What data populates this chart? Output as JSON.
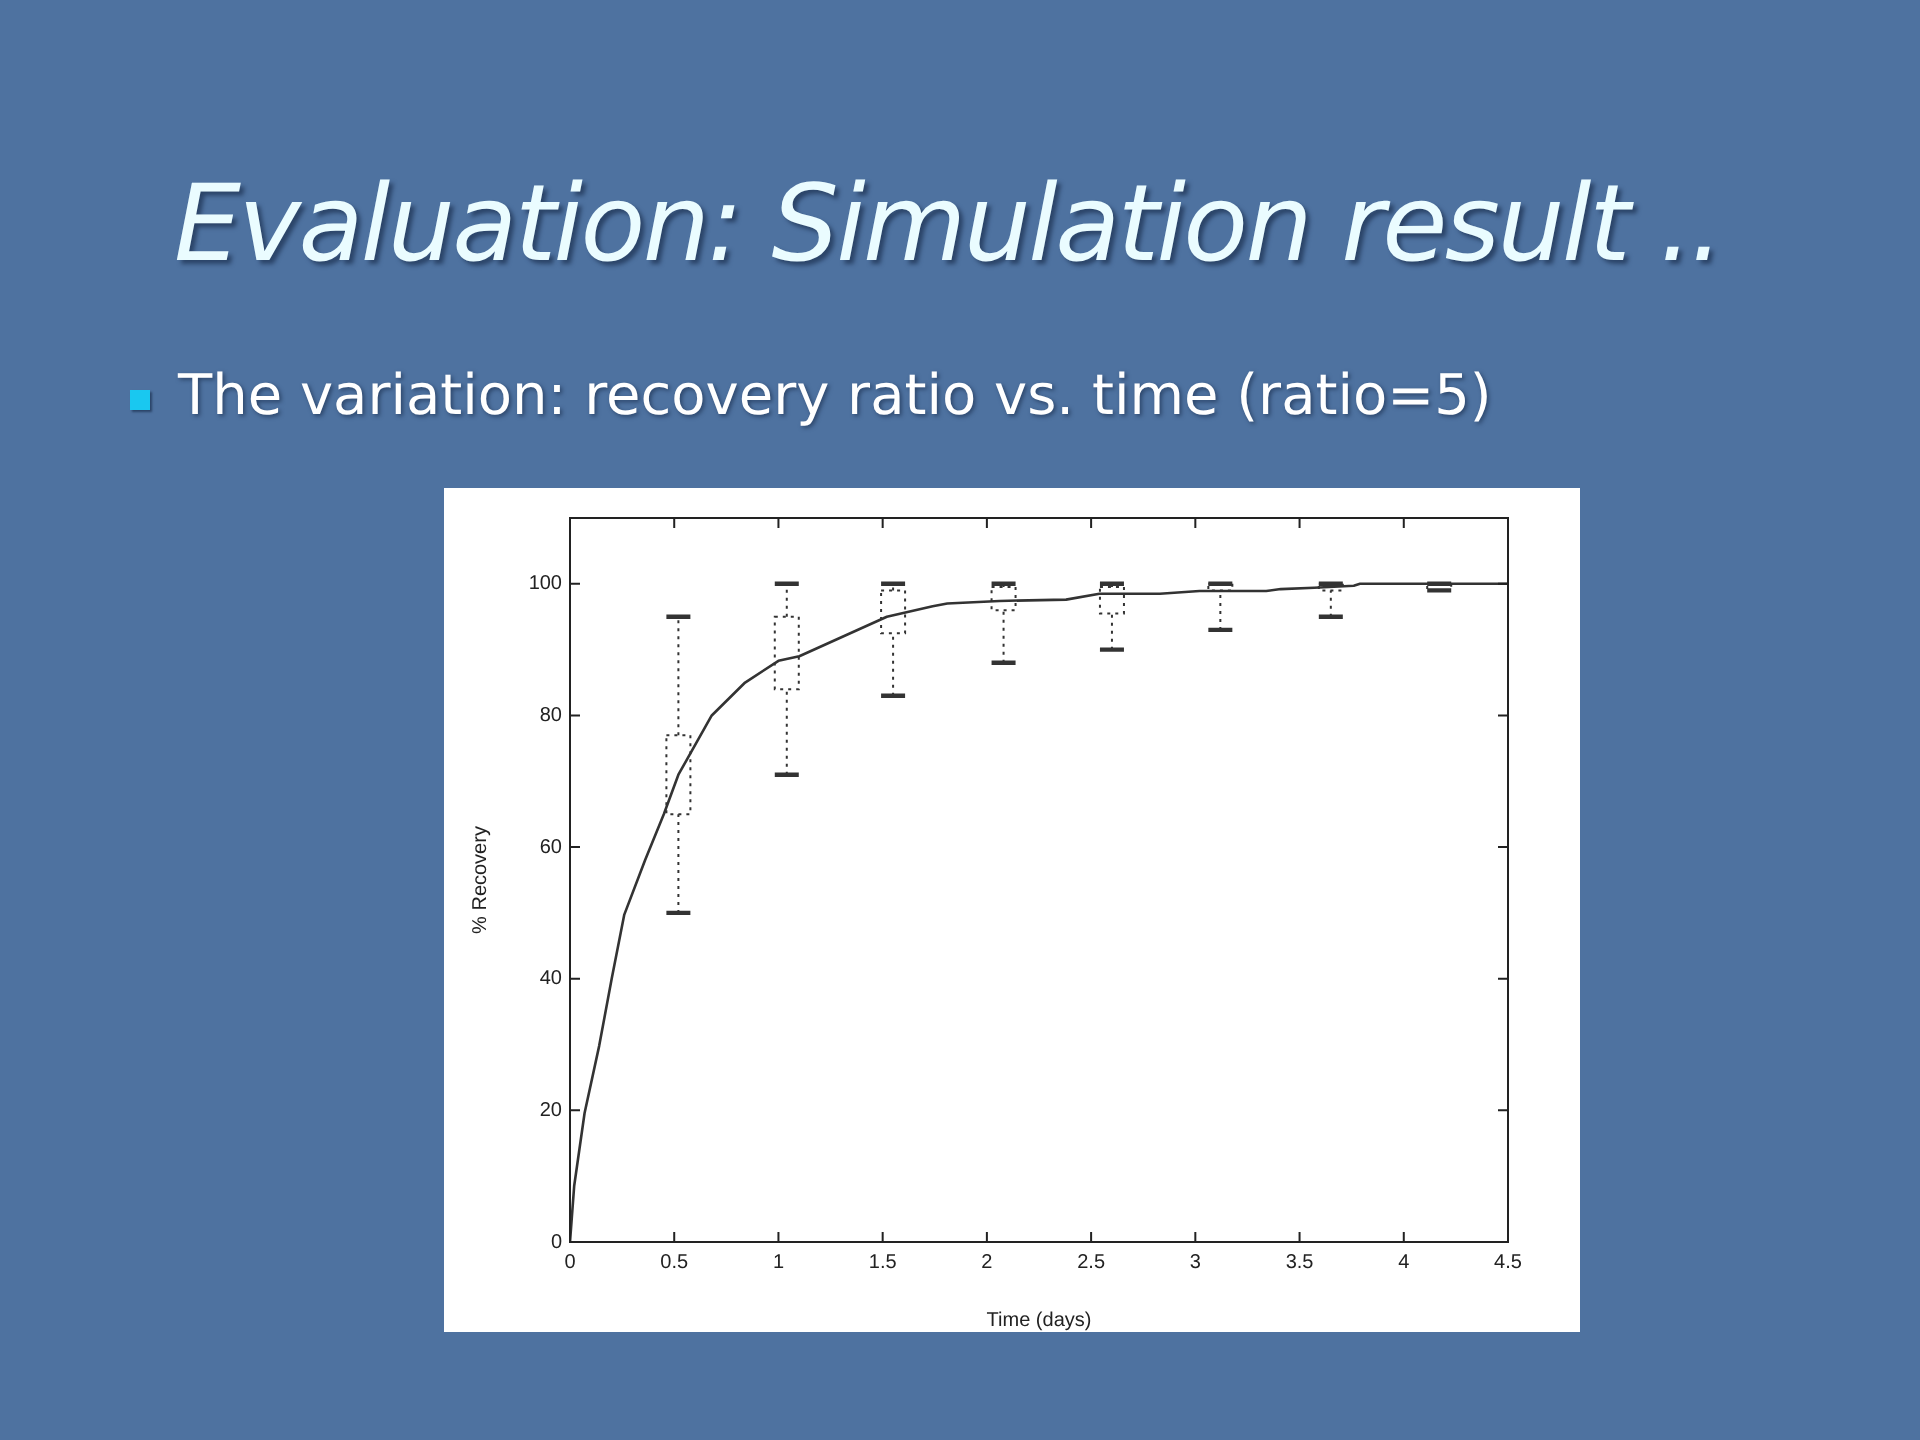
{
  "chart_data": {
    "type": "line",
    "title": "Evaluation: Simulation result ..",
    "subtitle": "The variation: recovery ratio vs. time (ratio=5)",
    "xlabel": "Time (days)",
    "ylabel": "% Recovery",
    "xlim": [
      0,
      4.5
    ],
    "xticks": [
      0,
      0.5,
      1,
      1.5,
      2,
      2.5,
      3,
      3.5,
      4,
      4.5
    ],
    "ylim": [
      0,
      110
    ],
    "yticks": [
      0,
      20,
      40,
      60,
      80,
      100
    ],
    "marker": "none",
    "series": [
      {
        "type": "line",
        "color": "#333333",
        "line_style": "solid",
        "x": [
          0,
          0.02,
          0.07,
          0.14,
          0.2,
          0.26,
          0.36,
          0.45,
          0.52,
          0.68,
          0.84,
          1,
          1.1,
          1.31,
          1.52,
          1.74,
          1.81,
          2.06,
          2.38,
          2.54,
          2.83,
          3.02,
          3.34,
          3.41,
          3.57,
          3.76,
          3.79,
          4.5
        ],
        "values": [
          0,
          8.5,
          19.6,
          29.8,
          40,
          49.7,
          58,
          65,
          71,
          80,
          85,
          88.3,
          89,
          92,
          95,
          96.6,
          97,
          97.4,
          97.6,
          98.5,
          98.5,
          98.9,
          98.9,
          99.2,
          99.4,
          99.7,
          100,
          100
        ]
      },
      {
        "type": "box",
        "color": "#333333",
        "line_style": "dotted",
        "x": [
          0.52,
          1.04,
          1.55,
          2.08,
          2.6,
          3.12,
          3.65,
          4.17
        ],
        "boxes": [
          {
            "low": 50,
            "q1": 65,
            "median": null,
            "q3": 77,
            "high": 95
          },
          {
            "low": 71,
            "q1": 84,
            "median": null,
            "q3": 95,
            "high": 100
          },
          {
            "low": 83,
            "q1": 92.5,
            "median": null,
            "q3": 99,
            "high": 100
          },
          {
            "low": 88,
            "q1": 96,
            "median": null,
            "q3": 99.5,
            "high": 100
          },
          {
            "low": 90,
            "q1": 95.5,
            "median": null,
            "q3": 99.5,
            "high": 100
          },
          {
            "low": 93,
            "q1": 99,
            "median": null,
            "q3": 100,
            "high": 100
          },
          {
            "low": 95,
            "q1": 99,
            "median": null,
            "q3": 100,
            "high": 100
          },
          {
            "low": 99,
            "q1": 99,
            "median": null,
            "q3": 100,
            "high": 100
          }
        ]
      }
    ]
  }
}
